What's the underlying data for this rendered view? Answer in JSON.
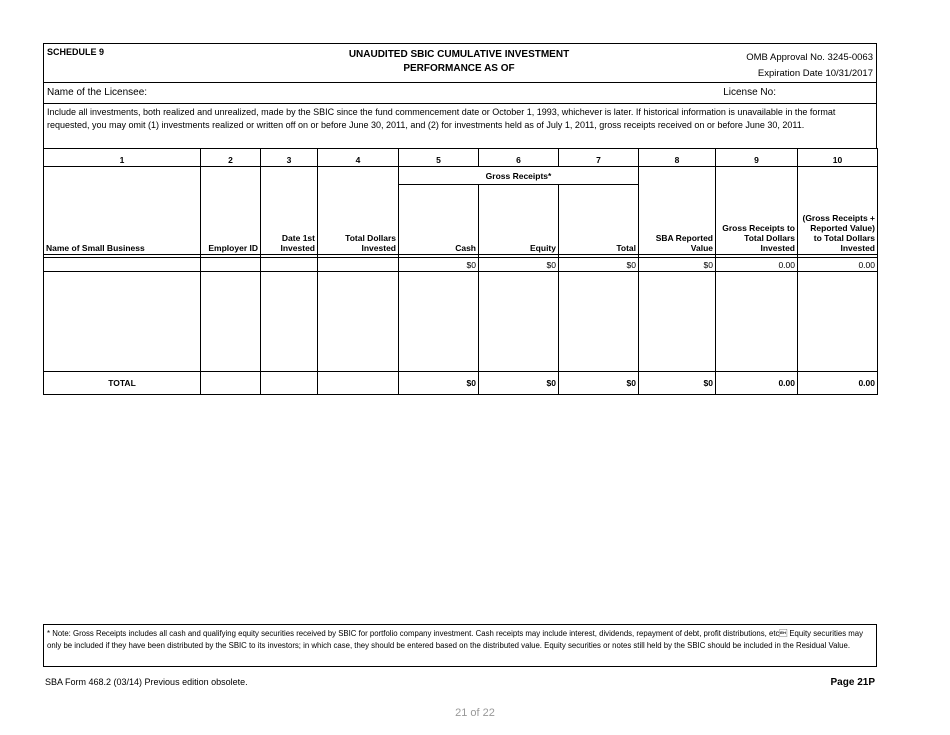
{
  "header": {
    "schedule": "SCHEDULE 9",
    "title_line1": "UNAUDITED SBIC CUMULATIVE INVESTMENT",
    "title_line2": "PERFORMANCE AS OF",
    "omb": "OMB Approval No. 3245-0063",
    "expiration": "Expiration Date 10/31/2017"
  },
  "licensee_label": "Name of the Licensee:",
  "license_no_label": "License No:",
  "instructions": "Include all investments, both realized and unrealized, made by the SBIC since the fund commencement date or October 1, 1993, whichever is later. If historical information is unavailable in the format requested, you may omit (1) investments realized or written off on or before June 30, 2011, and (2) for investments held as of July 1, 2011, gross receipts received on or before June 30, 2011.",
  "table": {
    "col_numbers": [
      "1",
      "2",
      "3",
      "4",
      "5",
      "6",
      "7",
      "8",
      "9",
      "10"
    ],
    "group_header": "Gross Receipts*",
    "headers": [
      "Name of Small Business",
      "Employer ID",
      "Date 1st Invested",
      "Total Dollars Invested",
      "Cash",
      "Equity",
      "Total",
      "SBA Reported Value",
      "Gross Receipts to Total Dollars Invested",
      "(Gross Receipts + Reported Value) to Total Dollars Invested"
    ],
    "row": [
      "",
      "",
      "",
      "",
      "$0",
      "$0",
      "$0",
      "$0",
      "0.00",
      "0.00"
    ],
    "total": [
      "TOTAL",
      "",
      "",
      "",
      "$0",
      "$0",
      "$0",
      "$0",
      "0.00",
      "0.00"
    ]
  },
  "note": "* Note: Gross Receipts includes all cash and qualifying equity securities received by SBIC for portfolio company investment. Cash receipts may include interest, dividends, repayment of debt, profit distributions, etc\u0019 Equity securities may only be included if they have been distributed by the SBIC to its investors; in which case, they should be entered based on the distributed value. Equity securities or notes still held by the SBIC should be included in the Residual Value.",
  "footer": {
    "form": "SBA Form 468.2 (03/14) Previous edition obsolete.",
    "page": "Page 21P",
    "page_count": "21 of 22"
  }
}
